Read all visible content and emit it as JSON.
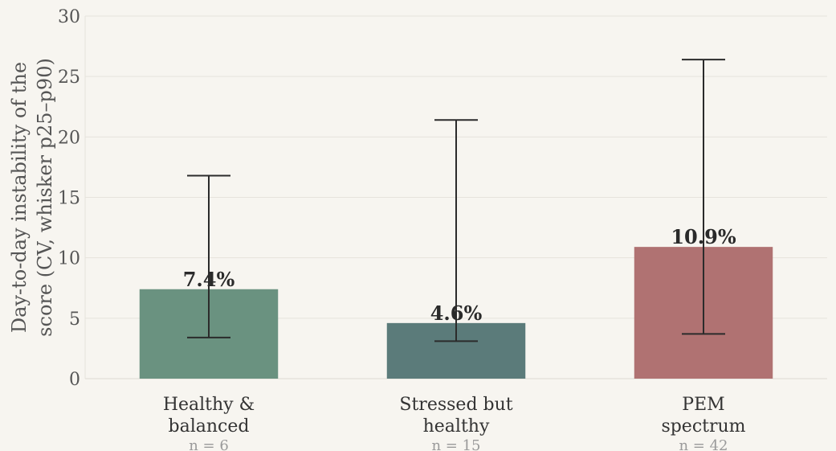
{
  "chart_data": {
    "type": "bar",
    "ylabel": [
      "Day-to-day instability of the",
      "score (CV, whisker p25–p90)"
    ],
    "ylim": [
      0,
      30
    ],
    "yticks": [
      0,
      5,
      10,
      15,
      20,
      25,
      30
    ],
    "grid": true,
    "categories": [
      {
        "label": [
          "Healthy &",
          "balanced"
        ],
        "n_label": "n = 6",
        "value": 7.4,
        "value_label": "7.4%",
        "whisker": [
          3.4,
          16.8
        ],
        "color": "#6a9280"
      },
      {
        "label": [
          "Stressed but",
          "healthy"
        ],
        "n_label": "n = 15",
        "value": 4.6,
        "value_label": "4.6%",
        "whisker": [
          3.1,
          21.4
        ],
        "color": "#5b7b7a"
      },
      {
        "label": [
          "PEM",
          "spectrum"
        ],
        "n_label": "n = 42",
        "value": 10.9,
        "value_label": "10.9%",
        "whisker": [
          3.7,
          26.4
        ],
        "color": "#b07272"
      }
    ]
  }
}
